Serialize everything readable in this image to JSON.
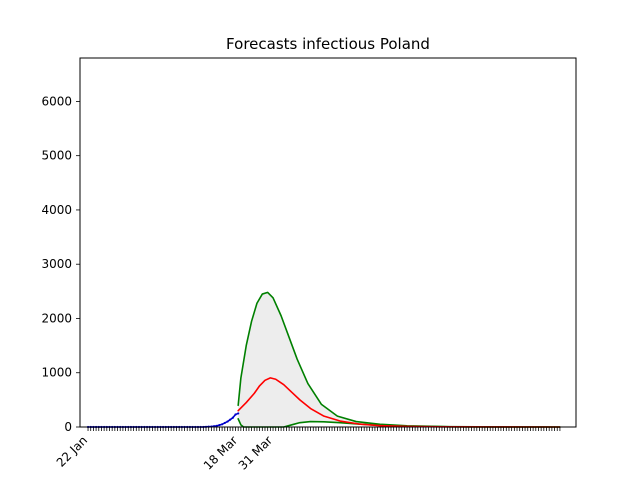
{
  "chart_data": {
    "type": "line",
    "title": "Forecasts infectious Poland",
    "xlabel": "",
    "ylabel": "",
    "x_dates": {
      "start": "2020-01-22",
      "end": "2020-07-16"
    },
    "xlim": [
      "2020-01-19",
      "2020-07-22"
    ],
    "ylim": [
      0,
      6800
    ],
    "y_ticks": [
      0,
      1000,
      2000,
      3000,
      4000,
      5000,
      6000
    ],
    "x_tick_labels": [
      {
        "date": "2020-01-22",
        "label": "22 Jan"
      },
      {
        "date": "2020-03-18",
        "label": "18 Mar"
      },
      {
        "date": "2020-03-31",
        "label": "31 Mar"
      }
    ],
    "series": [
      {
        "role": "observed",
        "color": "#0000cc",
        "points": [
          [
            "2020-01-22",
            0
          ],
          [
            "2020-02-10",
            0
          ],
          [
            "2020-03-01",
            0
          ],
          [
            "2020-03-05",
            1
          ],
          [
            "2020-03-08",
            8
          ],
          [
            "2020-03-10",
            20
          ],
          [
            "2020-03-12",
            50
          ],
          [
            "2020-03-14",
            100
          ],
          [
            "2020-03-16",
            170
          ],
          [
            "2020-03-17",
            230
          ],
          [
            "2020-03-18",
            250
          ]
        ]
      },
      {
        "role": "forecast",
        "color": "#ff0000",
        "points": [
          [
            "2020-03-18",
            300
          ],
          [
            "2020-03-21",
            450
          ],
          [
            "2020-03-24",
            620
          ],
          [
            "2020-03-26",
            760
          ],
          [
            "2020-03-28",
            860
          ],
          [
            "2020-03-30",
            905
          ],
          [
            "2020-04-01",
            880
          ],
          [
            "2020-04-04",
            780
          ],
          [
            "2020-04-07",
            640
          ],
          [
            "2020-04-10",
            500
          ],
          [
            "2020-04-14",
            340
          ],
          [
            "2020-04-19",
            200
          ],
          [
            "2020-04-25",
            110
          ],
          [
            "2020-05-02",
            55
          ],
          [
            "2020-05-10",
            25
          ],
          [
            "2020-05-20",
            10
          ],
          [
            "2020-06-01",
            4
          ],
          [
            "2020-06-20",
            1
          ],
          [
            "2020-07-16",
            0
          ]
        ]
      },
      {
        "role": "upper bound",
        "color": "#008000",
        "points": [
          [
            "2020-03-18",
            400
          ],
          [
            "2020-03-19",
            900
          ],
          [
            "2020-03-21",
            1500
          ],
          [
            "2020-03-23",
            1950
          ],
          [
            "2020-03-25",
            2280
          ],
          [
            "2020-03-27",
            2450
          ],
          [
            "2020-03-29",
            2480
          ],
          [
            "2020-03-31",
            2380
          ],
          [
            "2020-04-03",
            2050
          ],
          [
            "2020-04-06",
            1650
          ],
          [
            "2020-04-09",
            1250
          ],
          [
            "2020-04-13",
            800
          ],
          [
            "2020-04-18",
            420
          ],
          [
            "2020-04-24",
            200
          ],
          [
            "2020-05-01",
            100
          ],
          [
            "2020-05-10",
            50
          ],
          [
            "2020-05-20",
            22
          ],
          [
            "2020-06-05",
            6
          ],
          [
            "2020-06-25",
            1
          ],
          [
            "2020-07-16",
            0
          ]
        ]
      },
      {
        "role": "lower bound",
        "color": "#008000",
        "points": [
          [
            "2020-03-18",
            150
          ],
          [
            "2020-03-19",
            40
          ],
          [
            "2020-03-20",
            0
          ],
          [
            "2020-04-04",
            0
          ],
          [
            "2020-04-07",
            40
          ],
          [
            "2020-04-10",
            80
          ],
          [
            "2020-04-14",
            100
          ],
          [
            "2020-04-19",
            95
          ],
          [
            "2020-04-25",
            80
          ],
          [
            "2020-05-02",
            55
          ],
          [
            "2020-05-10",
            30
          ],
          [
            "2020-05-20",
            12
          ],
          [
            "2020-06-05",
            4
          ],
          [
            "2020-06-25",
            1
          ],
          [
            "2020-07-16",
            0
          ]
        ]
      }
    ],
    "band_fill": "#d3d3d3",
    "grid": false,
    "legend": "none"
  }
}
